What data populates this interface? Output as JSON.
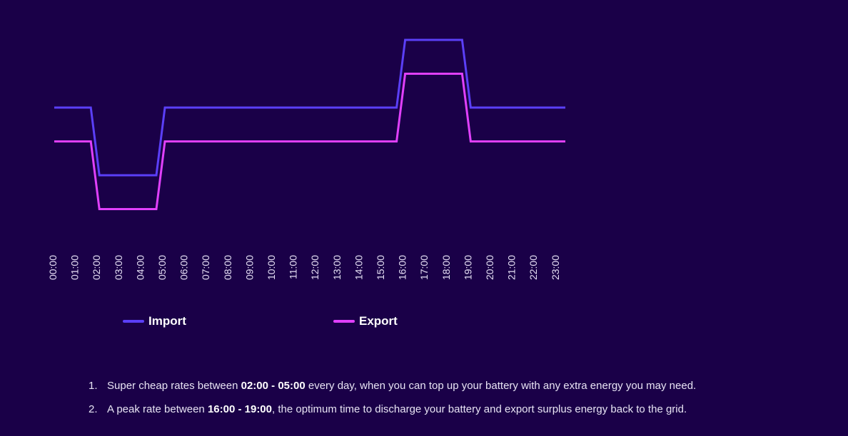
{
  "chart_data": {
    "type": "line",
    "title": "",
    "xlabel": "",
    "ylabel": "",
    "x": [
      "00:00",
      "01:00",
      "02:00",
      "03:00",
      "04:00",
      "05:00",
      "06:00",
      "07:00",
      "08:00",
      "09:00",
      "10:00",
      "11:00",
      "12:00",
      "13:00",
      "14:00",
      "15:00",
      "16:00",
      "17:00",
      "18:00",
      "19:00",
      "20:00",
      "21:00",
      "22:00",
      "23:00"
    ],
    "grid": false,
    "legend_position": "bottom",
    "series": [
      {
        "name": "Import",
        "color": "#5b3ff7",
        "values": [
          2,
          2,
          1,
          1,
          1,
          2,
          2,
          2,
          2,
          2,
          2,
          2,
          2,
          2,
          2,
          2,
          3,
          3,
          3,
          2,
          2,
          2,
          2,
          2
        ]
      },
      {
        "name": "Export",
        "color": "#e040fb",
        "values": [
          1.5,
          1.5,
          0.5,
          0.5,
          0.5,
          1.5,
          1.5,
          1.5,
          1.5,
          1.5,
          1.5,
          1.5,
          1.5,
          1.5,
          1.5,
          1.5,
          2.5,
          2.5,
          2.5,
          1.5,
          1.5,
          1.5,
          1.5,
          1.5
        ]
      }
    ]
  },
  "notes": [
    {
      "number": "1.",
      "prefix": "Super cheap rates between ",
      "highlight": "02:00 - 05:00",
      "suffix": " every day, when you can top up your battery with any extra energy you may need."
    },
    {
      "number": "2.",
      "prefix": "A peak rate between ",
      "highlight": "16:00 - 19:00",
      "suffix": ", the optimum time to discharge your battery and export surplus energy back to the grid."
    }
  ]
}
